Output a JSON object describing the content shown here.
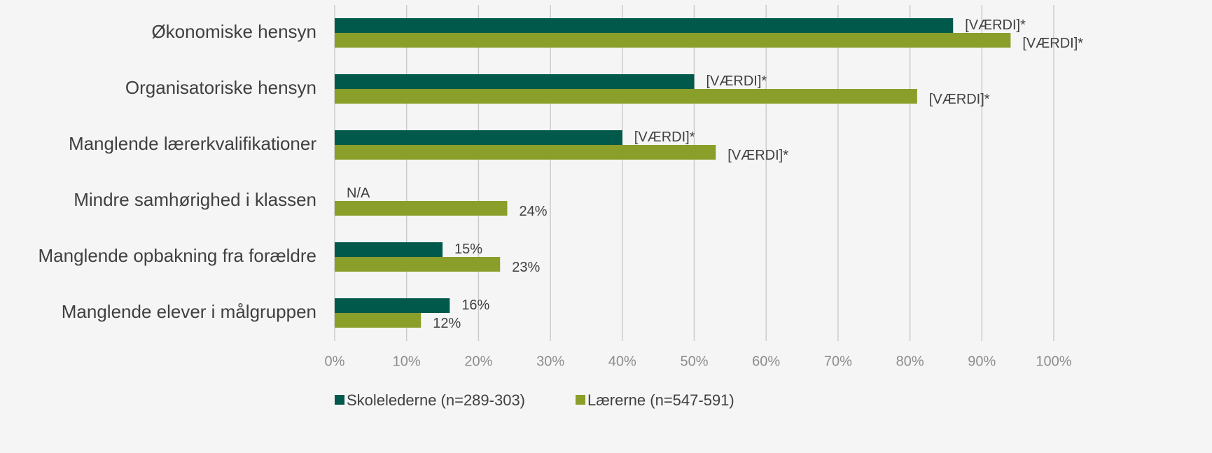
{
  "chart_data": {
    "type": "bar",
    "orientation": "horizontal",
    "categories": [
      "Økonomiske hensyn",
      "Organisatoriske hensyn",
      "Manglende lærerkvalifikationer",
      "Mindre samhørighed i klassen",
      "Manglende opbakning fra forældre",
      "Manglende elever i målgruppen"
    ],
    "series": [
      {
        "name": "Skolelederne (n=289-303)",
        "color": "#00594a",
        "values": [
          86,
          50,
          40,
          null,
          15,
          16
        ],
        "value_labels": [
          "[VÆRDI]*",
          "[VÆRDI]*",
          "[VÆRDI]*",
          "N/A",
          "15%",
          "16%"
        ]
      },
      {
        "name": "Lærerne (n=547-591)",
        "color": "#8a9e2a",
        "values": [
          94,
          81,
          53,
          24,
          23,
          12
        ],
        "value_labels": [
          "[VÆRDI]*",
          "[VÆRDI]*",
          "[VÆRDI]*",
          "24%",
          "23%",
          "12%"
        ]
      }
    ],
    "xlim": [
      0,
      100
    ],
    "xticks": [
      {
        "value": 0,
        "label": "0%"
      },
      {
        "value": 10,
        "label": "10%"
      },
      {
        "value": 20,
        "label": "20%"
      },
      {
        "value": 30,
        "label": "30%"
      },
      {
        "value": 40,
        "label": "40%"
      },
      {
        "value": 50,
        "label": "50%"
      },
      {
        "value": 60,
        "label": "60%"
      },
      {
        "value": 70,
        "label": "70%"
      },
      {
        "value": 80,
        "label": "80%"
      },
      {
        "value": 90,
        "label": "90%"
      },
      {
        "value": 100,
        "label": "100%"
      }
    ],
    "grid": true,
    "legend": "bottom"
  }
}
